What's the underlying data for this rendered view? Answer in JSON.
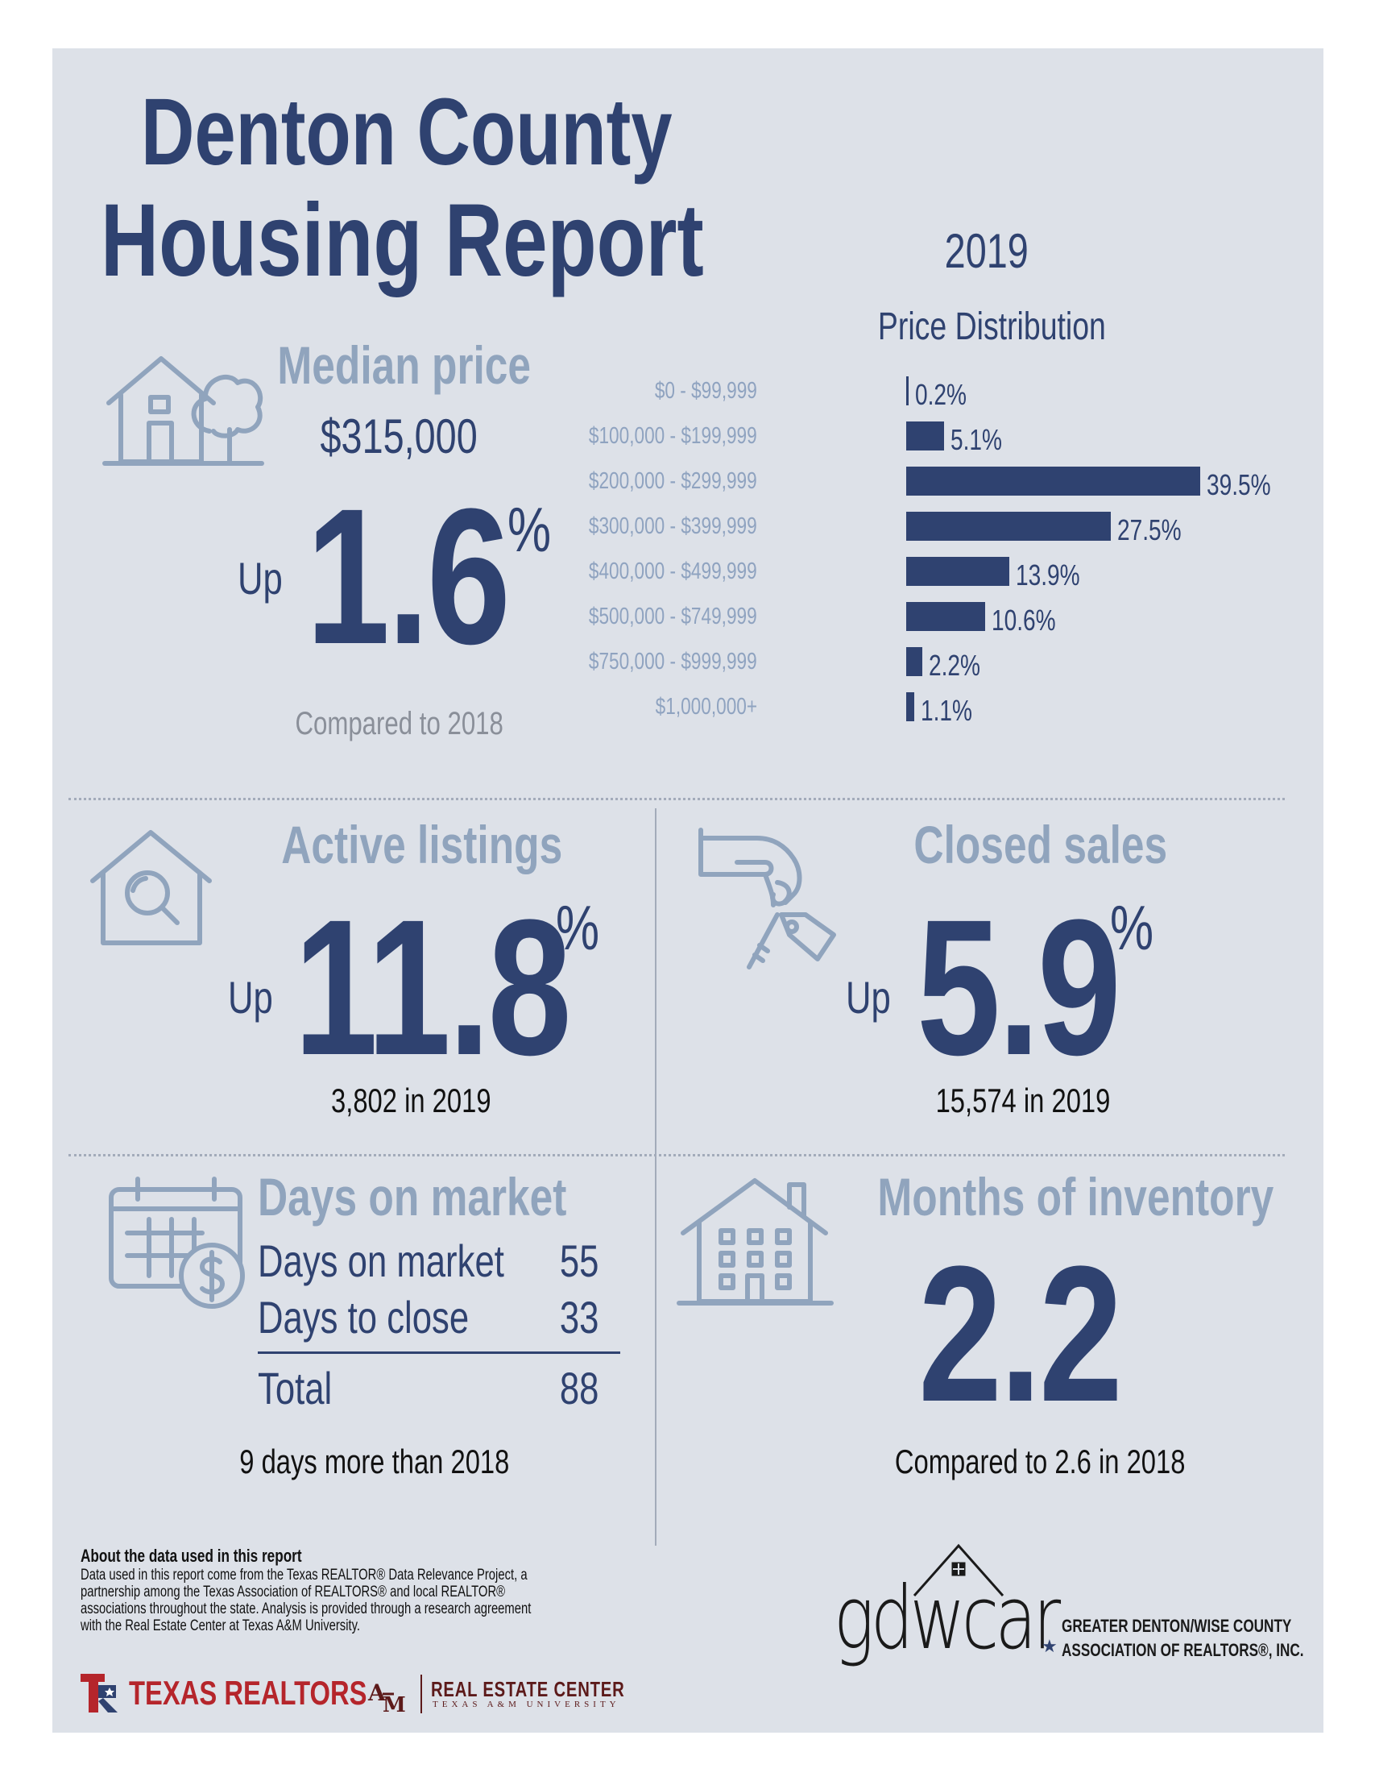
{
  "header": {
    "title_line1": "Denton County",
    "title_line2": "Housing Report",
    "year": "2019"
  },
  "median_price": {
    "heading": "Median price",
    "value": "$315,000",
    "direction": "Up",
    "change": "1.6",
    "unit": "%",
    "note": "Compared to 2018",
    "icon": "house-with-tree-icon"
  },
  "price_distribution": {
    "title": "Price Distribution",
    "rows": [
      {
        "label": "$0 - $99,999",
        "value": "0.2%",
        "pct": 0.2
      },
      {
        "label": "$100,000 - $199,999",
        "value": "5.1%",
        "pct": 5.1
      },
      {
        "label": "$200,000 - $299,999",
        "value": "39.5%",
        "pct": 39.5
      },
      {
        "label": "$300,000 - $399,999",
        "value": "27.5%",
        "pct": 27.5
      },
      {
        "label": "$400,000 - $499,999",
        "value": "13.9%",
        "pct": 13.9
      },
      {
        "label": "$500,000 - $749,999",
        "value": "10.6%",
        "pct": 10.6
      },
      {
        "label": "$750,000 - $999,999",
        "value": "2.2%",
        "pct": 2.2
      },
      {
        "label": "$1,000,000+",
        "value": "1.1%",
        "pct": 1.1
      }
    ]
  },
  "active_listings": {
    "heading": "Active listings",
    "direction": "Up",
    "change": "11.8",
    "unit": "%",
    "note": "3,802 in 2019",
    "icon": "house-magnifier-icon"
  },
  "closed_sales": {
    "heading": "Closed sales",
    "direction": "Up",
    "change": "5.9",
    "unit": "%",
    "note": "15,574 in 2019",
    "icon": "hand-keys-icon"
  },
  "days_on_market": {
    "heading": "Days on market",
    "rows": [
      {
        "label": "Days on market",
        "value": "55"
      },
      {
        "label": "Days to close",
        "value": "33"
      }
    ],
    "total_label": "Total",
    "total_value": "88",
    "note": "9 days more than 2018",
    "icon": "calendar-dollar-icon"
  },
  "months_inventory": {
    "heading": "Months of inventory",
    "value": "2.2",
    "note": "Compared to 2.6 in 2018",
    "icon": "apartment-house-icon"
  },
  "footer": {
    "about_title": "About the data used in this report",
    "about_lines": [
      "Data used in this report come from the Texas REALTOR® Data Relevance Project, a",
      "partnership among the Texas Association of REALTORS® and local REALTOR®",
      "associations throughout the state. Analysis is provided through a research agreement",
      "with the Real Estate Center at Texas A&M University."
    ],
    "texas_realtors": "TEXAS REALTORS",
    "rec_line1": "REAL ESTATE CENTER",
    "rec_line2": "TEXAS A&M UNIVERSITY",
    "gdwcar": "gdwcar",
    "gdwcar_line1": "GREATER DENTON/WISE COUNTY",
    "gdwcar_line2": "ASSOCIATION OF REALTORS®, INC."
  },
  "colors": {
    "navy": "#2f4270",
    "pale_blue": "#90a4bd",
    "background": "#dde1e8",
    "texas_red": "#b5252b"
  }
}
